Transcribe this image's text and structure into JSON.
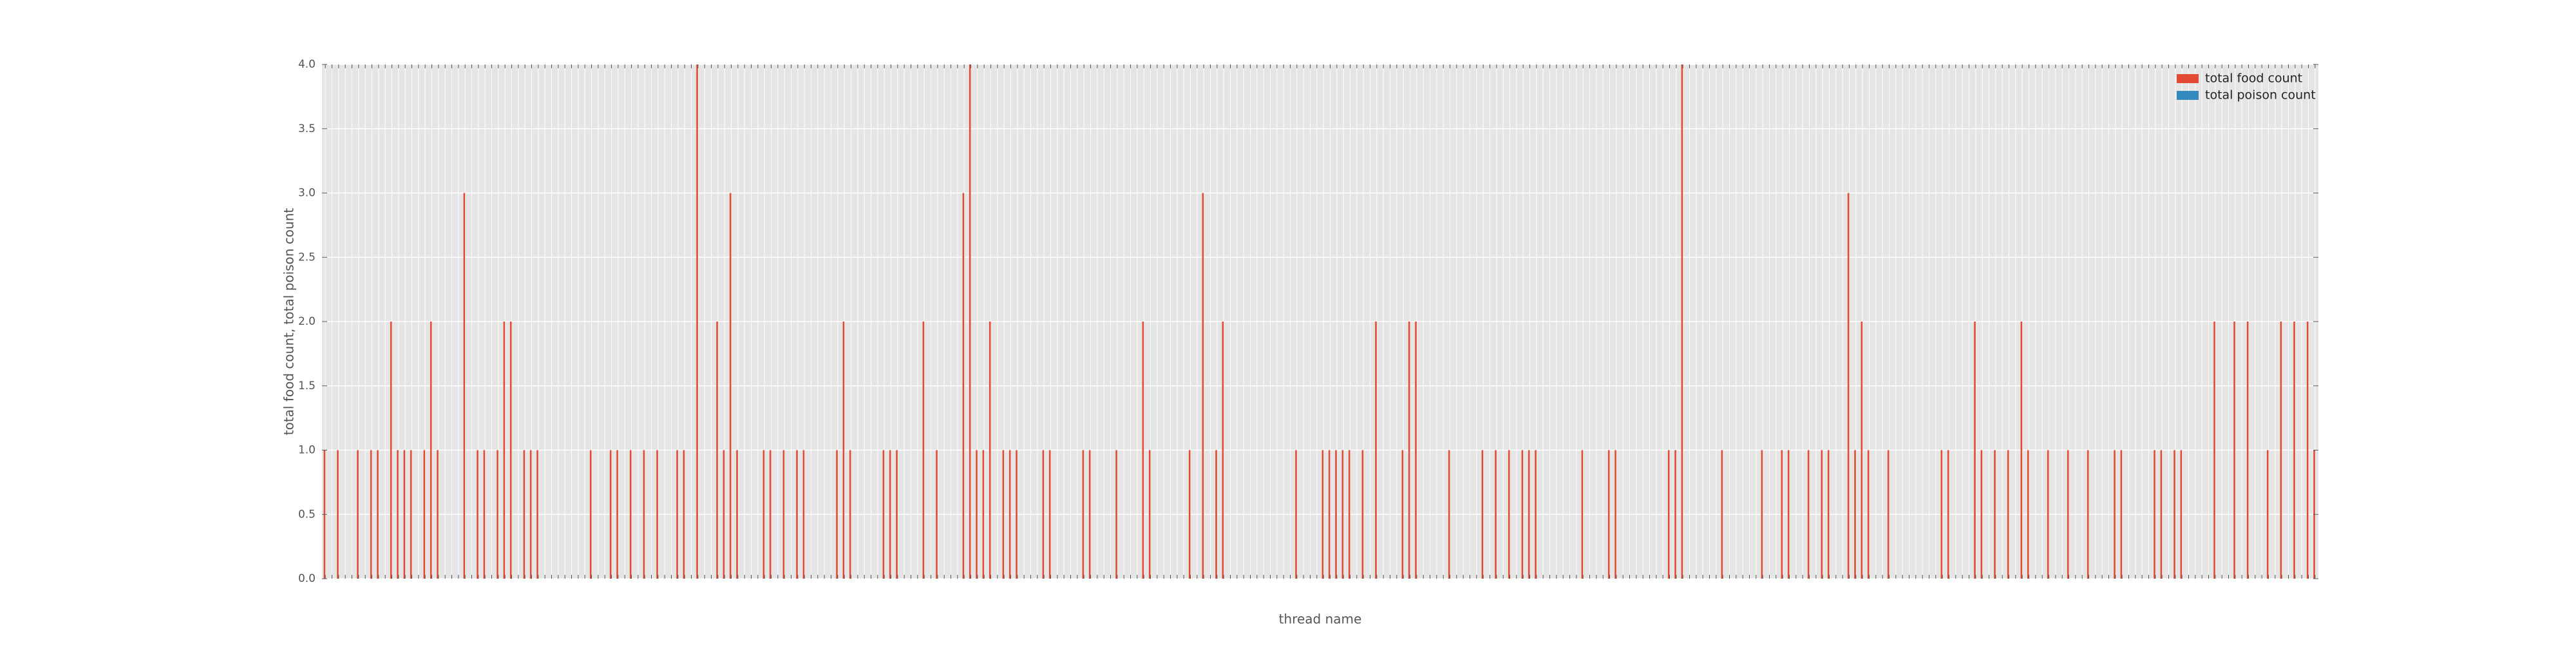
{
  "chart_data": {
    "type": "bar",
    "xlabel": "thread name",
    "ylabel": "total food count, total poison count",
    "categories": [
      null,
      null,
      null,
      null,
      null,
      null,
      null,
      null,
      null,
      null,
      null,
      null,
      null,
      null,
      null,
      null,
      null,
      null,
      null,
      null,
      null,
      null,
      null,
      null,
      null,
      null,
      null,
      null,
      null,
      null,
      null,
      null,
      null,
      null,
      null,
      null,
      null,
      null,
      null,
      null,
      null,
      null,
      null,
      null,
      null,
      null,
      null,
      null,
      null,
      null,
      null,
      null,
      null,
      null,
      null,
      null,
      null,
      null,
      null,
      null,
      null,
      null,
      null,
      null,
      null,
      null,
      null,
      null,
      null,
      null,
      null,
      null,
      null,
      null,
      null,
      null,
      null,
      null,
      null,
      null,
      null,
      null,
      null,
      null,
      null,
      null,
      null,
      null,
      null,
      null,
      null,
      null,
      null,
      null,
      null,
      null,
      null,
      null,
      null,
      null,
      null,
      null,
      null,
      null,
      null,
      null,
      null,
      null,
      null,
      null,
      null,
      null,
      null,
      null,
      null,
      null,
      null,
      null,
      null,
      null,
      null,
      null,
      null,
      null,
      null,
      null,
      null,
      null,
      null,
      null,
      null,
      null,
      null,
      null,
      null,
      null,
      null,
      null,
      null,
      null,
      null,
      null,
      null,
      null,
      null,
      null,
      null,
      null,
      null,
      null,
      null,
      null,
      null,
      null,
      null,
      null,
      null,
      null,
      null,
      null,
      null,
      null,
      null,
      null,
      null,
      null,
      null,
      null,
      null,
      null,
      null,
      null,
      null,
      null,
      null,
      null,
      null,
      null,
      null,
      null,
      null,
      null,
      null,
      null,
      null,
      null,
      null,
      null,
      null,
      null,
      null,
      null,
      null,
      null,
      null,
      null,
      null,
      null,
      null,
      null,
      null,
      null,
      null,
      null,
      null,
      null,
      null,
      null,
      null,
      null,
      null,
      null,
      null,
      null,
      null,
      null,
      null,
      null,
      null,
      null,
      null,
      null,
      null,
      null,
      null,
      null,
      null,
      null,
      null,
      null,
      null,
      null,
      null,
      null,
      null,
      null,
      null,
      null,
      null,
      null,
      null,
      null,
      null,
      null,
      null,
      null,
      null,
      null,
      null,
      null,
      null,
      null,
      null,
      null,
      null,
      null,
      null,
      null,
      null,
      null,
      null,
      null,
      null,
      null,
      null,
      null,
      null,
      null,
      null,
      null,
      null,
      null,
      null,
      null,
      null,
      null,
      null,
      null,
      null,
      null,
      null,
      null,
      null,
      null,
      null,
      null,
      null,
      null,
      null,
      null,
      null,
      null,
      null,
      null,
      null,
      null,
      null,
      null,
      null,
      null
    ],
    "series": [
      {
        "name": "total food count",
        "color": "#E24A33",
        "values": [
          1,
          0,
          1,
          0,
          0,
          1,
          0,
          1,
          1,
          0,
          2,
          1,
          1,
          1,
          0,
          1,
          2,
          1,
          0,
          0,
          0,
          3,
          0,
          1,
          1,
          0,
          1,
          2,
          2,
          0,
          1,
          1,
          1,
          0,
          0,
          0,
          0,
          0,
          0,
          0,
          1,
          0,
          0,
          1,
          1,
          0,
          1,
          0,
          1,
          0,
          1,
          0,
          0,
          1,
          1,
          0,
          4,
          0,
          0,
          2,
          1,
          3,
          1,
          0,
          0,
          0,
          1,
          1,
          0,
          1,
          0,
          1,
          1,
          0,
          0,
          0,
          0,
          1,
          2,
          1,
          0,
          0,
          0,
          0,
          1,
          1,
          1,
          0,
          0,
          0,
          2,
          0,
          1,
          0,
          0,
          0,
          3,
          4,
          1,
          1,
          2,
          0,
          1,
          1,
          1,
          0,
          0,
          0,
          1,
          1,
          0,
          0,
          0,
          0,
          1,
          1,
          0,
          0,
          0,
          1,
          0,
          0,
          0,
          2,
          1,
          0,
          0,
          0,
          0,
          0,
          1,
          0,
          3,
          0,
          1,
          2,
          0,
          0,
          0,
          0,
          0,
          0,
          0,
          0,
          0,
          0,
          1,
          0,
          0,
          0,
          1,
          1,
          1,
          1,
          1,
          0,
          1,
          0,
          2,
          0,
          0,
          0,
          1,
          2,
          2,
          0,
          0,
          0,
          0,
          1,
          0,
          0,
          0,
          0,
          1,
          0,
          1,
          0,
          1,
          0,
          1,
          1,
          1,
          0,
          0,
          0,
          0,
          0,
          0,
          1,
          0,
          0,
          0,
          1,
          1,
          0,
          0,
          0,
          0,
          0,
          0,
          0,
          1,
          1,
          4,
          0,
          0,
          0,
          0,
          0,
          1,
          0,
          0,
          0,
          0,
          0,
          1,
          0,
          0,
          1,
          1,
          0,
          0,
          1,
          0,
          1,
          1,
          0,
          0,
          3,
          1,
          2,
          1,
          0,
          0,
          1,
          0,
          0,
          0,
          0,
          0,
          0,
          0,
          1,
          1,
          0,
          0,
          0,
          2,
          1,
          0,
          1,
          0,
          1,
          0,
          2,
          1,
          0,
          0,
          1,
          0,
          0,
          1,
          0,
          0,
          1,
          0,
          0,
          0,
          1,
          1,
          0,
          0,
          0,
          0,
          1,
          1,
          0,
          1,
          1,
          0,
          0,
          0,
          0,
          2,
          0,
          0,
          2,
          0,
          2,
          0,
          0,
          1,
          0,
          2,
          0,
          2,
          0,
          2,
          1
        ]
      },
      {
        "name": "total poison count",
        "color": "#348ABD",
        "values": [
          0,
          0,
          0,
          0,
          0,
          0,
          0,
          0,
          0,
          0,
          0,
          0,
          0,
          0,
          0,
          0,
          0,
          0,
          0,
          0,
          0,
          0,
          0,
          0,
          0,
          0,
          0,
          0,
          0,
          0,
          0,
          0,
          0,
          0,
          0,
          0,
          0,
          0,
          0,
          0,
          0,
          0,
          0,
          0,
          0,
          0,
          0,
          0,
          0,
          0,
          0,
          0,
          0,
          0,
          0,
          0,
          0,
          0,
          0,
          0,
          0,
          0,
          0,
          0,
          0,
          0,
          0,
          0,
          0,
          0,
          0,
          0,
          0,
          0,
          0,
          0,
          0,
          0,
          0,
          0,
          0,
          0,
          0,
          0,
          0,
          0,
          0,
          0,
          0,
          0,
          0,
          0,
          0,
          0,
          0,
          0,
          0,
          0,
          0,
          0,
          0,
          0,
          0,
          0,
          0,
          0,
          0,
          0,
          0,
          0,
          0,
          0,
          0,
          0,
          0,
          0,
          0,
          0,
          0,
          0,
          0,
          0,
          0,
          0,
          0,
          0,
          0,
          0,
          0,
          0,
          0,
          0,
          0,
          0,
          0,
          0,
          0,
          0,
          0,
          0,
          0,
          0,
          0,
          0,
          0,
          0,
          0,
          0,
          0,
          0,
          0,
          0,
          0,
          0,
          0,
          0,
          0,
          0,
          0,
          0,
          0,
          0,
          0,
          0,
          0,
          0,
          0,
          0,
          0,
          0,
          0,
          0,
          0,
          0,
          0,
          0,
          0,
          0,
          0,
          0,
          0,
          0,
          0,
          0,
          0,
          0,
          0,
          0,
          0,
          0,
          0,
          0,
          0,
          0,
          0,
          0,
          0,
          0,
          0,
          0,
          0,
          0,
          0,
          0,
          0,
          0,
          0,
          0,
          0,
          0,
          0,
          0,
          0,
          0,
          0,
          0,
          0,
          0,
          0,
          0,
          0,
          0,
          0,
          0,
          0,
          0,
          0,
          0,
          0,
          0,
          0,
          0,
          0,
          0,
          0,
          0,
          0,
          0,
          0,
          0,
          0,
          0,
          0,
          0,
          0,
          0,
          0,
          0,
          0,
          0,
          0,
          0,
          0,
          0,
          0,
          0,
          0,
          0,
          0,
          0,
          0,
          0,
          0,
          0,
          0,
          0,
          0,
          0,
          0,
          0,
          0,
          0,
          0,
          0,
          0,
          0,
          0,
          0,
          0,
          0,
          0,
          0,
          0,
          0,
          0,
          0,
          0,
          0,
          0,
          0,
          0,
          0,
          0,
          0,
          0,
          0,
          0,
          0,
          0,
          0
        ]
      }
    ],
    "ylim": [
      0,
      4
    ],
    "yticks": [
      {
        "value": 0,
        "label": "0.0"
      },
      0.5,
      {
        "value": 1,
        "label": "1.0"
      },
      1.5,
      {
        "value": 2,
        "label": "2.0"
      },
      2.5,
      {
        "value": 3,
        "label": "3.0"
      },
      3.5,
      {
        "value": 4,
        "label": "4.0"
      }
    ],
    "grid": true,
    "legend": "upper right"
  }
}
